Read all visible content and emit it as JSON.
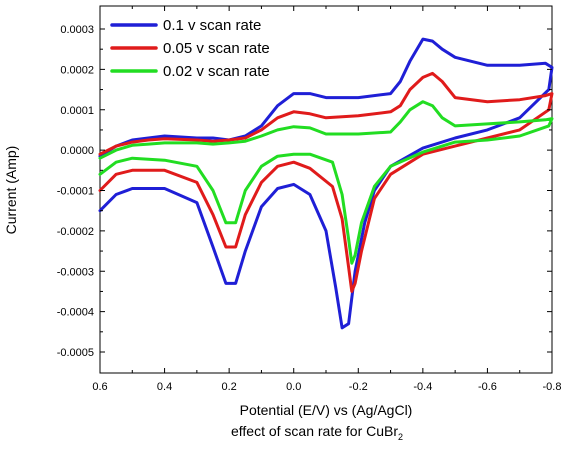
{
  "chart_data": {
    "type": "line",
    "xlabel": "Potential (E/V) vs (Ag/AgCl)",
    "subtitle": "effect of scan rate for CuBr",
    "subtitle_subscript": "2",
    "ylabel": "Current (Amp)",
    "xlim": [
      0.6,
      -0.8
    ],
    "ylim": [
      -0.00055,
      0.00035
    ],
    "x_reversed": true,
    "grid": false,
    "legend_position": "top-left",
    "xticks": [
      0.6,
      0.4,
      0.2,
      0.0,
      -0.2,
      -0.4,
      -0.6,
      -0.8
    ],
    "xtick_labels": [
      "0.6",
      "0.4",
      "0.2",
      "0.0",
      "-0.2",
      "-0.4",
      "-0.6",
      "-0.8"
    ],
    "yticks": [
      0.0003,
      0.0002,
      0.0001,
      0.0,
      -0.0001,
      -0.0002,
      -0.0003,
      -0.0004,
      -0.0005
    ],
    "ytick_labels": [
      "0.0003",
      "0.0002",
      "0.0001",
      "0.0000",
      "-0.0001",
      "-0.0002",
      "-0.0003",
      "-0.0004",
      "-0.0005"
    ],
    "series": [
      {
        "name": "0.1 v scan rate",
        "color": "#1f1fd6",
        "x": [
          0.6,
          0.55,
          0.5,
          0.45,
          0.4,
          0.3,
          0.25,
          0.2,
          0.15,
          0.1,
          0.05,
          0.0,
          -0.05,
          -0.1,
          -0.2,
          -0.3,
          -0.33,
          -0.36,
          -0.4,
          -0.43,
          -0.46,
          -0.5,
          -0.6,
          -0.7,
          -0.78,
          -0.8,
          -0.79,
          -0.7,
          -0.6,
          -0.5,
          -0.4,
          -0.3,
          -0.25,
          -0.22,
          -0.19,
          -0.17,
          -0.15,
          -0.13,
          -0.1,
          -0.05,
          0.0,
          0.05,
          0.1,
          0.15,
          0.18,
          0.21,
          0.25,
          0.3,
          0.4,
          0.5,
          0.55,
          0.6
        ],
        "y": [
          -1.5e-05,
          1e-05,
          2.5e-05,
          3e-05,
          3.5e-05,
          3e-05,
          3e-05,
          2.5e-05,
          3.5e-05,
          6e-05,
          0.00011,
          0.00014,
          0.00014,
          0.00013,
          0.00013,
          0.00014,
          0.00017,
          0.00022,
          0.000275,
          0.00027,
          0.00025,
          0.00023,
          0.00021,
          0.00021,
          0.000215,
          0.000205,
          0.00015,
          8e-05,
          5e-05,
          3e-05,
          5e-06,
          -4e-05,
          -0.0001,
          -0.00018,
          -0.0003,
          -0.00043,
          -0.00044,
          -0.00034,
          -0.0002,
          -0.00011,
          -8.5e-05,
          -9.5e-05,
          -0.00014,
          -0.00025,
          -0.00033,
          -0.00033,
          -0.00024,
          -0.00013,
          -9.5e-05,
          -9.5e-05,
          -0.00011,
          -0.00015
        ]
      },
      {
        "name": "0.05 v scan rate",
        "color": "#e01b1b",
        "x": [
          0.6,
          0.55,
          0.5,
          0.45,
          0.4,
          0.3,
          0.25,
          0.2,
          0.15,
          0.1,
          0.05,
          0.0,
          -0.05,
          -0.1,
          -0.2,
          -0.3,
          -0.33,
          -0.36,
          -0.4,
          -0.43,
          -0.46,
          -0.5,
          -0.6,
          -0.7,
          -0.78,
          -0.8,
          -0.79,
          -0.7,
          -0.6,
          -0.5,
          -0.4,
          -0.3,
          -0.25,
          -0.21,
          -0.19,
          -0.18,
          -0.17,
          -0.15,
          -0.12,
          -0.05,
          0.0,
          0.05,
          0.1,
          0.15,
          0.18,
          0.21,
          0.25,
          0.3,
          0.4,
          0.5,
          0.55,
          0.6
        ],
        "y": [
          -1e-05,
          1e-05,
          2e-05,
          2.5e-05,
          2.8e-05,
          2.5e-05,
          2.2e-05,
          2.5e-05,
          3e-05,
          5e-05,
          8e-05,
          9.5e-05,
          9e-05,
          8e-05,
          8.5e-05,
          9.5e-05,
          0.00011,
          0.00015,
          0.00018,
          0.00019,
          0.00017,
          0.00013,
          0.00012,
          0.000125,
          0.000135,
          0.00014,
          0.0001,
          5e-05,
          3e-05,
          1e-05,
          -1e-05,
          -6e-05,
          -0.00012,
          -0.00025,
          -0.00033,
          -0.00035,
          -0.00029,
          -0.00017,
          -9e-05,
          -4.5e-05,
          -3e-05,
          -4e-05,
          -8e-05,
          -0.00016,
          -0.00024,
          -0.00024,
          -0.00016,
          -8e-05,
          -5e-05,
          -5e-05,
          -6e-05,
          -0.0001
        ]
      },
      {
        "name": "0.02 v scan rate",
        "color": "#22dd22",
        "x": [
          0.6,
          0.55,
          0.5,
          0.45,
          0.4,
          0.3,
          0.25,
          0.2,
          0.15,
          0.1,
          0.05,
          0.0,
          -0.05,
          -0.1,
          -0.2,
          -0.3,
          -0.33,
          -0.36,
          -0.4,
          -0.43,
          -0.46,
          -0.5,
          -0.6,
          -0.7,
          -0.78,
          -0.8,
          -0.79,
          -0.7,
          -0.6,
          -0.5,
          -0.4,
          -0.3,
          -0.25,
          -0.21,
          -0.19,
          -0.18,
          -0.17,
          -0.15,
          -0.12,
          -0.05,
          0.0,
          0.05,
          0.1,
          0.15,
          0.18,
          0.21,
          0.25,
          0.3,
          0.4,
          0.5,
          0.55,
          0.6
        ],
        "y": [
          -2e-05,
          0.0,
          1.2e-05,
          1.5e-05,
          1.8e-05,
          1.8e-05,
          1.5e-05,
          1.8e-05,
          2.2e-05,
          3.5e-05,
          5e-05,
          5.8e-05,
          5.5e-05,
          4e-05,
          4e-05,
          4.5e-05,
          7e-05,
          0.0001,
          0.00012,
          0.00011,
          8e-05,
          6e-05,
          6.5e-05,
          7e-05,
          7.5e-05,
          7.8e-05,
          6e-05,
          3.5e-05,
          2.5e-05,
          2e-05,
          -5e-06,
          -4e-05,
          -9e-05,
          -0.00018,
          -0.00026,
          -0.00028,
          -0.00022,
          -0.00011,
          -3e-05,
          -1e-05,
          -1e-05,
          -1.5e-05,
          -4e-05,
          -0.0001,
          -0.00018,
          -0.00018,
          -0.0001,
          -4e-05,
          -2.5e-05,
          -2e-05,
          -3e-05,
          -6e-05
        ]
      }
    ]
  }
}
